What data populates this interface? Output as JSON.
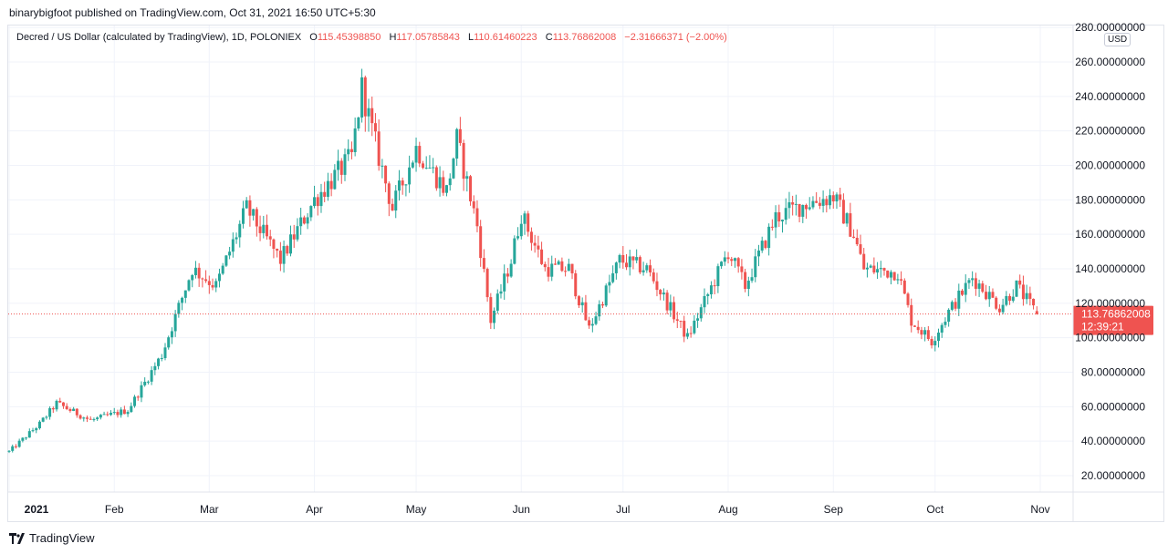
{
  "header": {
    "publisher_line": "binarybigfoot published on TradingView.com, Oct 31, 2021 16:50 UTC+5:30"
  },
  "legend": {
    "symbol": "Decred / US Dollar (calculated by TradingView), 1D, POLONIEX",
    "open_label": "O",
    "open_value": "115.45398850",
    "high_label": "H",
    "high_value": "117.05785843",
    "low_label": "L",
    "low_value": "110.61460223",
    "close_label": "C",
    "close_value": "113.76862008",
    "change": "−2.31666371 (−2.00%)"
  },
  "price_axis": {
    "currency": "USD",
    "last_price": "113.76862008",
    "countdown": "12:39:21"
  },
  "footer": {
    "brand": "TradingView"
  },
  "colors": {
    "up": "#26a69a",
    "down": "#ef5350",
    "grid": "#f0f3fa",
    "axis_text": "#131722",
    "last_price_bg": "#ef5350"
  },
  "chart_data": {
    "type": "candlestick",
    "currency": "USD",
    "y_ticks": [
      "20.00000000",
      "40.00000000",
      "60.00000000",
      "80.00000000",
      "100.00000000",
      "120.00000000",
      "140.00000000",
      "160.00000000",
      "180.00000000",
      "200.00000000",
      "220.00000000",
      "240.00000000",
      "260.00000000",
      "280.00000000"
    ],
    "x_ticks": [
      "2021",
      "Feb",
      "Mar",
      "Apr",
      "May",
      "Jun",
      "Jul",
      "Aug",
      "Sep",
      "Oct",
      "Nov"
    ],
    "ylim": [
      0,
      285
    ],
    "grid": true,
    "last_close": 113.76862008,
    "key_points": [
      {
        "date": "2021-01-01",
        "close": 34
      },
      {
        "date": "2021-01-10",
        "close": 50
      },
      {
        "date": "2021-01-15",
        "close": 62
      },
      {
        "date": "2021-01-25",
        "close": 52
      },
      {
        "date": "2021-02-05",
        "close": 58
      },
      {
        "date": "2021-02-15",
        "close": 90
      },
      {
        "date": "2021-02-24",
        "close": 140
      },
      {
        "date": "2021-03-03",
        "close": 130
      },
      {
        "date": "2021-03-12",
        "close": 175
      },
      {
        "date": "2021-03-22",
        "close": 145
      },
      {
        "date": "2021-04-01",
        "close": 180
      },
      {
        "date": "2021-04-12",
        "close": 205
      },
      {
        "date": "2021-04-15",
        "close": 245
      },
      {
        "date": "2021-04-18",
        "close": 220
      },
      {
        "date": "2021-04-24",
        "close": 175
      },
      {
        "date": "2021-05-01",
        "close": 210
      },
      {
        "date": "2021-05-10",
        "close": 185
      },
      {
        "date": "2021-05-13",
        "close": 215
      },
      {
        "date": "2021-05-19",
        "close": 165
      },
      {
        "date": "2021-05-23",
        "close": 110
      },
      {
        "date": "2021-05-29",
        "close": 145
      },
      {
        "date": "2021-06-01",
        "close": 172
      },
      {
        "date": "2021-06-08",
        "close": 140
      },
      {
        "date": "2021-06-15",
        "close": 140
      },
      {
        "date": "2021-06-21",
        "close": 105
      },
      {
        "date": "2021-06-30",
        "close": 145
      },
      {
        "date": "2021-07-08",
        "close": 140
      },
      {
        "date": "2021-07-20",
        "close": 100
      },
      {
        "date": "2021-08-01",
        "close": 150
      },
      {
        "date": "2021-08-06",
        "close": 130
      },
      {
        "date": "2021-08-15",
        "close": 170
      },
      {
        "date": "2021-08-24",
        "close": 178
      },
      {
        "date": "2021-09-01",
        "close": 182
      },
      {
        "date": "2021-09-07",
        "close": 160
      },
      {
        "date": "2021-09-10",
        "close": 140
      },
      {
        "date": "2021-09-20",
        "close": 138
      },
      {
        "date": "2021-09-24",
        "close": 110
      },
      {
        "date": "2021-09-30",
        "close": 98
      },
      {
        "date": "2021-10-05",
        "close": 115
      },
      {
        "date": "2021-10-12",
        "close": 135
      },
      {
        "date": "2021-10-20",
        "close": 118
      },
      {
        "date": "2021-10-25",
        "close": 130
      },
      {
        "date": "2021-10-31",
        "close": 113.77
      }
    ]
  }
}
